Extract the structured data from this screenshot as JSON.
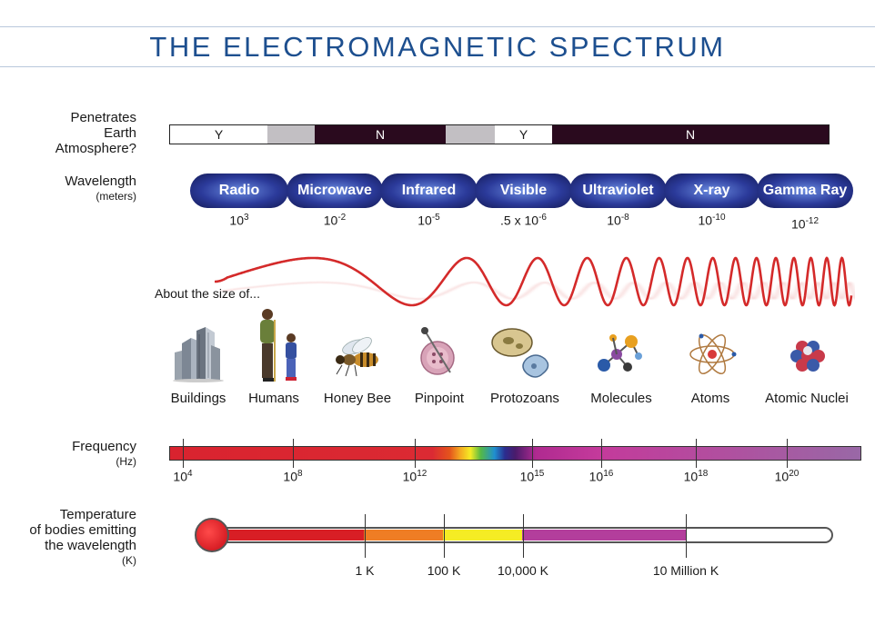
{
  "title": "THE ELECTROMAGNETIC SPECTRUM",
  "atmosphere": {
    "label_lines": [
      "Penetrates",
      "Earth",
      "Atmosphere?"
    ],
    "segments": [
      {
        "text": "Y",
        "kind": "yes"
      },
      {
        "text": "",
        "kind": "partial"
      },
      {
        "text": "N",
        "kind": "no"
      },
      {
        "text": "",
        "kind": "partial"
      },
      {
        "text": "Y",
        "kind": "yes"
      },
      {
        "text": "N",
        "kind": "no"
      }
    ],
    "colors": {
      "yes": "#ffffff",
      "partial": "#c2bfc3",
      "no": "#2a0a1e"
    }
  },
  "wavelength": {
    "label": "Wavelength",
    "unit": "(meters)",
    "bands": [
      {
        "name": "Radio",
        "base": "10",
        "exp": "3",
        "prefix": ""
      },
      {
        "name": "Microwave",
        "base": "10",
        "exp": "-2",
        "prefix": ""
      },
      {
        "name": "Infrared",
        "base": "10",
        "exp": "-5",
        "prefix": ""
      },
      {
        "name": "Visible",
        "base": "10",
        "exp": "-6",
        "prefix": ".5 x "
      },
      {
        "name": "Ultraviolet",
        "base": "10",
        "exp": "-8",
        "prefix": ""
      },
      {
        "name": "X-ray",
        "base": "10",
        "exp": "-10",
        "prefix": ""
      },
      {
        "name": "Gamma Ray",
        "base": "10",
        "exp": "-12",
        "prefix": ""
      }
    ]
  },
  "size": {
    "label": "About the size of...",
    "items": [
      {
        "name": "Buildings",
        "icon": "buildings-icon"
      },
      {
        "name": "Humans",
        "icon": "humans-icon"
      },
      {
        "name": "Honey Bee",
        "icon": "honey-bee-icon"
      },
      {
        "name": "Pinpoint",
        "icon": "pinpoint-icon"
      },
      {
        "name": "Protozoans",
        "icon": "protozoans-icon"
      },
      {
        "name": "Molecules",
        "icon": "molecules-icon"
      },
      {
        "name": "Atoms",
        "icon": "atom-icon"
      },
      {
        "name": "Atomic Nuclei",
        "icon": "atomic-nuclei-icon"
      }
    ]
  },
  "frequency": {
    "label": "Frequency",
    "unit": "(Hz)",
    "ticks": [
      {
        "base": "10",
        "exp": "4"
      },
      {
        "base": "10",
        "exp": "8"
      },
      {
        "base": "10",
        "exp": "12"
      },
      {
        "base": "10",
        "exp": "15"
      },
      {
        "base": "10",
        "exp": "16"
      },
      {
        "base": "10",
        "exp": "18"
      },
      {
        "base": "10",
        "exp": "20"
      }
    ]
  },
  "temperature": {
    "label_lines": [
      "Temperature",
      "of bodies emitting",
      "the wavelength"
    ],
    "unit": "(K)",
    "ticks": [
      "1 K",
      "100 K",
      "10,000 K",
      "10 Million K"
    ],
    "fill_colors": [
      "#d81e25",
      "#ef7d24",
      "#f5ec24",
      "#b33e9c"
    ]
  }
}
